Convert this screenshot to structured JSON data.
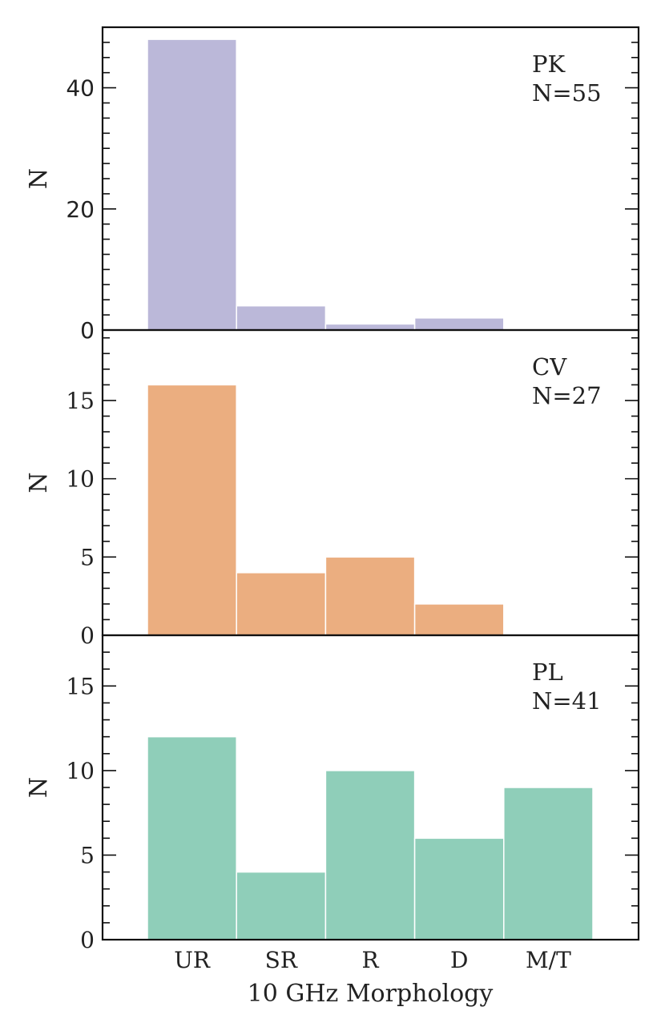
{
  "chart_data": {
    "type": "bar",
    "categories": [
      "UR",
      "SR",
      "R",
      "D",
      "M/T"
    ],
    "xlabel": "10 GHz Morphology",
    "shared_x": true,
    "panels": [
      {
        "label": "PK",
        "count_label": "N=55",
        "ylabel": "N",
        "ylim": [
          0,
          50
        ],
        "yticks": [
          0,
          20,
          40
        ],
        "minor_step": 2.5,
        "color": "#bbb8d9",
        "values": [
          48,
          4,
          1,
          2,
          0
        ]
      },
      {
        "label": "CV",
        "count_label": "N=27",
        "ylabel": "N",
        "ylim": [
          0,
          19.5
        ],
        "yticks": [
          0,
          5,
          10,
          15
        ],
        "minor_step": 1,
        "color": "#ebae80",
        "values": [
          16,
          4,
          5,
          2,
          0
        ]
      },
      {
        "label": "PL",
        "count_label": "N=41",
        "ylabel": "N",
        "ylim": [
          0,
          18
        ],
        "yticks": [
          0,
          5,
          10,
          15
        ],
        "minor_step": 1,
        "color": "#8fceb9",
        "values": [
          12,
          4,
          10,
          6,
          9
        ]
      }
    ]
  }
}
